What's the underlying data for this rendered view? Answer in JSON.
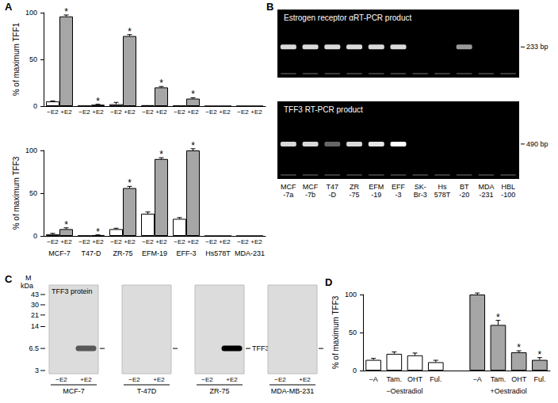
{
  "chart_data": [
    {
      "label": "A",
      "type": "bar",
      "y_label": "% of maximum TFF1",
      "categories": [
        null,
        null,
        null,
        null,
        null,
        null,
        null
      ],
      "series": [
        {
          "name": "−E2",
          "color": "#ffffff",
          "values": [
            5,
            0.3,
            2,
            1,
            0.5,
            0,
            0
          ],
          "errors": [
            0.5,
            0,
            2,
            0,
            0,
            0,
            0
          ],
          "annotations": [
            null,
            null,
            null,
            null,
            null,
            null,
            null
          ]
        },
        {
          "name": "+E2",
          "color": "#a6a6a6",
          "values": [
            96,
            1.5,
            75,
            20,
            8,
            0,
            0
          ],
          "errors": [
            1.5,
            0.5,
            1.5,
            1,
            1,
            0,
            0
          ],
          "annotations": [
            "*",
            "*",
            "*",
            "*",
            "*",
            null,
            null
          ]
        }
      ],
      "ylim": [
        0,
        100
      ],
      "yticks": [
        0,
        50,
        100
      ]
    },
    {
      "type": "bar",
      "y_label": "% of maximum TFF3",
      "categories": [
        "MCF-7",
        "T47-D",
        "ZR-75",
        "EFM-19",
        "EFF-3",
        "Hs578T",
        "MDA-231"
      ],
      "series": [
        {
          "name": "−E2",
          "color": "#ffffff",
          "values": [
            2,
            0.3,
            8,
            26,
            20,
            0,
            0
          ],
          "errors": [
            1,
            0,
            1,
            2,
            1.5,
            0,
            0
          ],
          "annotations": [
            null,
            null,
            null,
            null,
            null,
            null,
            null
          ]
        },
        {
          "name": "+E2",
          "color": "#a6a6a6",
          "values": [
            8,
            1,
            56,
            90,
            100,
            0,
            0
          ],
          "errors": [
            1.5,
            0.3,
            2,
            1.5,
            2,
            0,
            0
          ],
          "annotations": [
            "*",
            "*",
            "*",
            "*",
            "*",
            null,
            null
          ]
        }
      ],
      "ylim": [
        0,
        100
      ],
      "yticks": [
        0,
        50,
        100
      ]
    },
    {
      "label": "B",
      "type": "gel",
      "lanes": [
        "MCF\n-7a",
        "MCF\n-7b",
        "T47\n-D",
        "ZR\n-75",
        "EFM\n-19",
        "EFF\n-3",
        "SK-\nBr-3",
        "Hs\n578T",
        "BT\n-20",
        "MDA\n-231",
        "HBL\n-100"
      ],
      "gels": [
        {
          "title": "Estrogen receptor αRT-PCR product",
          "size_label": "233 bp",
          "band_intensity": [
            0.85,
            0.85,
            0.85,
            0.85,
            0.85,
            0.85,
            0,
            0,
            0.6,
            0,
            0
          ]
        },
        {
          "title": "TFF3 RT-PCR product",
          "size_label": "490 bp",
          "band_intensity": [
            0.85,
            0.85,
            0.4,
            0.85,
            0.9,
            1,
            0,
            0,
            0,
            0,
            0
          ]
        }
      ]
    },
    {
      "label": "C",
      "type": "blot",
      "title": "TFF3 protein",
      "marker_title": "M",
      "marker_unit": "kDa",
      "log": "y",
      "ylim": [
        3,
        43
      ],
      "yticks": [
        3,
        6.5,
        14,
        21,
        30,
        43
      ],
      "band_kda": 6.5,
      "blots": [
        {
          "name": "MCF-7",
          "lanes": [
            "−E2",
            "+E2"
          ],
          "band_intensity": [
            0,
            0.6
          ]
        },
        {
          "name": "T-47D",
          "lanes": [
            "−E2",
            "+E2"
          ],
          "band_intensity": [
            0,
            0
          ]
        },
        {
          "name": "ZR-75",
          "lanes": [
            "−E2",
            "+E2"
          ],
          "band_intensity": [
            0,
            1
          ],
          "band_label": "TFF3"
        },
        {
          "name": "MDA-MB-231",
          "lanes": [
            "−E2",
            "+E2"
          ],
          "band_intensity": [
            0,
            0
          ]
        }
      ]
    },
    {
      "label": "D",
      "type": "bar",
      "y_label": "% of maximum TFF3",
      "categories": [
        "−A",
        "Tam.",
        "OHT",
        "Ful.",
        null,
        "−A",
        "Tam.",
        "OHT",
        "Ful."
      ],
      "series": [
        {
          "name": "−Oestradiol",
          "color": "#ffffff",
          "values": [
            14,
            22,
            20,
            11,
            null,
            null,
            null,
            null,
            null
          ],
          "errors": [
            2,
            2.5,
            3,
            2.5,
            null,
            null,
            null,
            null,
            null
          ],
          "annotations": [
            null,
            null,
            null,
            null,
            null,
            null,
            null,
            null,
            null
          ]
        },
        {
          "name": "+Oestradiol",
          "color": "#a6a6a6",
          "values": [
            null,
            null,
            null,
            null,
            null,
            100,
            60,
            24,
            14
          ],
          "errors": [
            null,
            null,
            null,
            null,
            null,
            2,
            6,
            2,
            3
          ],
          "annotations": [
            null,
            null,
            null,
            null,
            null,
            null,
            "*",
            "*",
            "*"
          ]
        }
      ],
      "ylim": [
        0,
        100
      ],
      "yticks": [
        0,
        50,
        100
      ]
    }
  ]
}
